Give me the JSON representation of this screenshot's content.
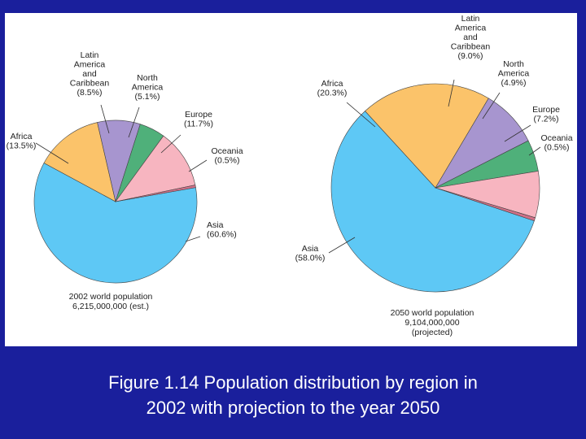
{
  "colors": {
    "background": "#1a1f9c",
    "panel": "#ffffff",
    "caption_text": "#ffffff",
    "leader_line": "#333333",
    "slice_outline": "#444444"
  },
  "caption": {
    "line1": "Figure 1.14  Population distribution by region in",
    "line2": "2002 with projection to the year 2050"
  },
  "chart_data": [
    {
      "type": "pie",
      "title": "2002 world population",
      "subtitle": "6,215,000,000 (est.)",
      "slices": [
        {
          "key": "asia",
          "lines": [
            "Asia",
            "(60.6%)"
          ],
          "value": 60.6,
          "color": "#5ec8f5"
        },
        {
          "key": "africa",
          "lines": [
            "Africa",
            "(13.5%)"
          ],
          "value": 13.5,
          "color": "#fbc36a"
        },
        {
          "key": "latin-america",
          "lines": [
            "Latin",
            "America",
            "and",
            "Caribbean",
            "(8.5%)"
          ],
          "value": 8.5,
          "color": "#a795cf"
        },
        {
          "key": "north-america",
          "lines": [
            "North",
            "America",
            "(5.1%)"
          ],
          "value": 5.1,
          "color": "#4fb07a"
        },
        {
          "key": "europe",
          "lines": [
            "Europe",
            "(11.7%)"
          ],
          "value": 11.7,
          "color": "#f7b5c0"
        },
        {
          "key": "oceania",
          "lines": [
            "Oceania",
            "(0.5%)"
          ],
          "value": 0.5,
          "color": "#d07088"
        }
      ]
    },
    {
      "type": "pie",
      "title": "2050 world population",
      "subtitle": "9,104,000,000",
      "note": "(projected)",
      "slices": [
        {
          "key": "asia",
          "lines": [
            "Asia",
            "(58.0%)"
          ],
          "value": 58.0,
          "color": "#5ec8f5"
        },
        {
          "key": "africa",
          "lines": [
            "Africa",
            "(20.3%)"
          ],
          "value": 20.3,
          "color": "#fbc36a"
        },
        {
          "key": "latin-america",
          "lines": [
            "Latin",
            "America",
            "and",
            "Caribbean",
            "(9.0%)"
          ],
          "value": 9.0,
          "color": "#a795cf"
        },
        {
          "key": "north-america",
          "lines": [
            "North",
            "America",
            "(4.9%)"
          ],
          "value": 4.9,
          "color": "#4fb07a"
        },
        {
          "key": "europe",
          "lines": [
            "Europe",
            "(7.2%)"
          ],
          "value": 7.2,
          "color": "#f7b5c0"
        },
        {
          "key": "oceania",
          "lines": [
            "Oceania",
            "(0.5%)"
          ],
          "value": 0.5,
          "color": "#d07088"
        }
      ]
    }
  ]
}
